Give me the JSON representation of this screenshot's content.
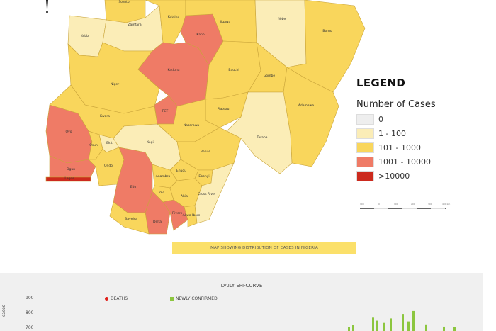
{
  "map": {
    "colors": {
      "0": "#eeeeee",
      "1-100": "#fbedb7",
      "101-1000": "#f9d65c",
      "1001-10000": "#ef7b66",
      "gt10000": "#cc2a1e"
    },
    "states": [
      {
        "name": "Sokoto",
        "class": "101-1000"
      },
      {
        "name": "Kebbi",
        "class": "1-100"
      },
      {
        "name": "Zamfara",
        "class": "1-100"
      },
      {
        "name": "Katsina",
        "class": "101-1000"
      },
      {
        "name": "Kano",
        "class": "1001-10000"
      },
      {
        "name": "Jigawa",
        "class": "101-1000"
      },
      {
        "name": "Yobe",
        "class": "1-100"
      },
      {
        "name": "Borno",
        "class": "101-1000"
      },
      {
        "name": "Niger",
        "class": "101-1000"
      },
      {
        "name": "Kaduna",
        "class": "1001-10000"
      },
      {
        "name": "FCT",
        "class": "1001-10000"
      },
      {
        "name": "Bauchi",
        "class": "101-1000"
      },
      {
        "name": "Gombe",
        "class": "101-1000"
      },
      {
        "name": "Plateau",
        "class": "101-1000"
      },
      {
        "name": "Adamawa",
        "class": "101-1000"
      },
      {
        "name": "Taraba",
        "class": "1-100"
      },
      {
        "name": "Kwara",
        "class": "101-1000"
      },
      {
        "name": "Nasarawa",
        "class": "101-1000"
      },
      {
        "name": "Oyo",
        "class": "1001-10000"
      },
      {
        "name": "Ogun",
        "class": "1001-10000"
      },
      {
        "name": "Lagos",
        "class": "gt10000"
      },
      {
        "name": "Osun",
        "class": "101-1000"
      },
      {
        "name": "Ekiti",
        "class": "1-100"
      },
      {
        "name": "Kogi",
        "class": "1-100"
      },
      {
        "name": "Ondo",
        "class": "101-1000"
      },
      {
        "name": "Edo",
        "class": "1001-10000"
      },
      {
        "name": "Benue",
        "class": "101-1000"
      },
      {
        "name": "Enugu",
        "class": "101-1000"
      },
      {
        "name": "Anambra",
        "class": "101-1000"
      },
      {
        "name": "Ebonyi",
        "class": "101-1000"
      },
      {
        "name": "Cross River",
        "class": "1-100"
      },
      {
        "name": "Delta",
        "class": "1001-10000"
      },
      {
        "name": "Imo",
        "class": "101-1000"
      },
      {
        "name": "Abia",
        "class": "101-1000"
      },
      {
        "name": "Bayelsa",
        "class": "101-1000"
      },
      {
        "name": "Rivers",
        "class": "1001-10000"
      },
      {
        "name": "Akwa Ibom",
        "class": "101-1000"
      }
    ],
    "north_arrow_icon": "north-arrow-icon"
  },
  "legend": {
    "title": "LEGEND",
    "subtitle": "Number of Cases",
    "items": [
      {
        "label": "0",
        "color": "#eeeeee"
      },
      {
        "label": "1 - 100",
        "color": "#fbedb7"
      },
      {
        "label": "101 - 1000",
        "color": "#f9d65c"
      },
      {
        "label": "1001 - 10000",
        "color": "#ef7b66"
      },
      {
        "label": ">10000",
        "color": "#cc2a1e"
      }
    ],
    "scale_ticks": [
      "100",
      "0",
      "100",
      "200",
      "300",
      "400 km"
    ]
  },
  "caption": "MAP SHOWING DISTRIBUTION OF CASES IN NIGERIA",
  "chart_data": {
    "type": "bar",
    "title": "DAILY EPI-CURVE",
    "ylabel": "cases",
    "yticks": [
      900,
      800,
      700
    ],
    "ylim": [
      0,
      900
    ],
    "grid": false,
    "legend_placement": "top",
    "series": [
      {
        "name": "DEATHS",
        "color": "#e0201b",
        "values": []
      },
      {
        "name": "NEWLY CONFIRMED",
        "color": "#8cc63f",
        "values": [
          700,
          715,
          770,
          745,
          730,
          760,
          790,
          740,
          810,
          720,
          705,
          700
        ]
      }
    ]
  }
}
